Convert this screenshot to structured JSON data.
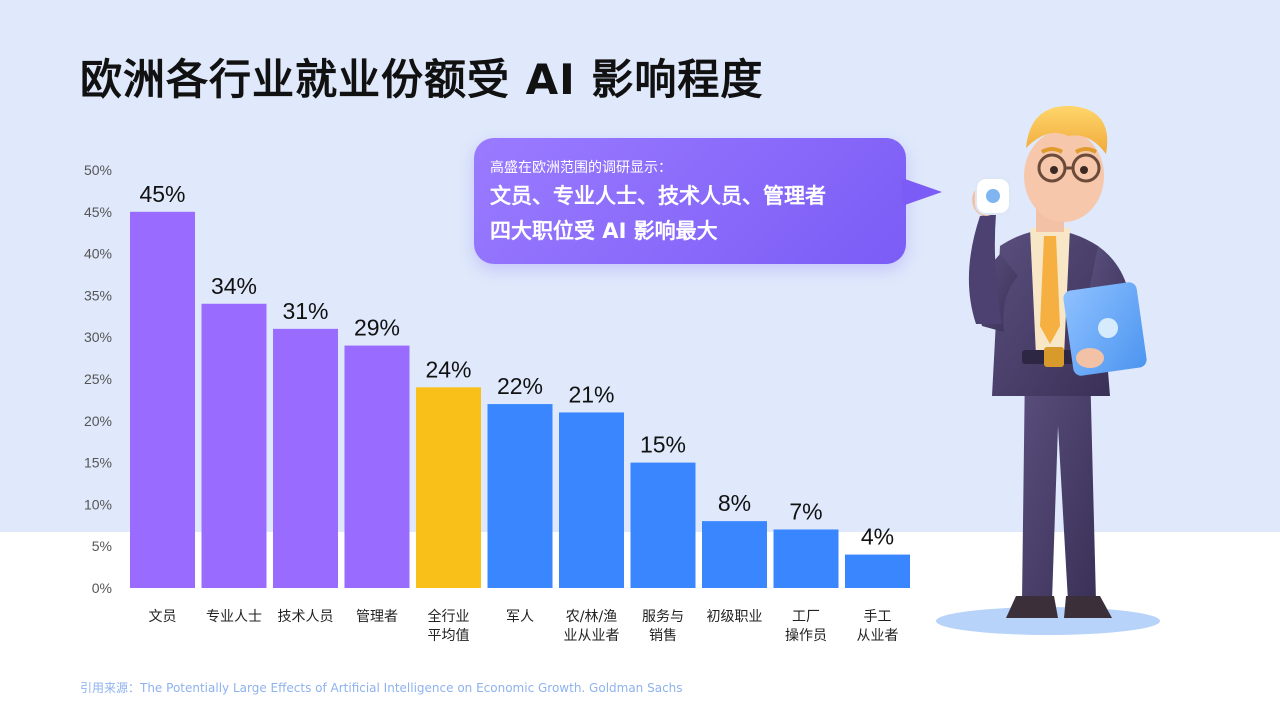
{
  "title": "欧洲各行业就业份额受 AI 影响程度",
  "callout": {
    "subtitle": "高盛在欧洲范围的调研显示：",
    "line1": "文员、专业人士、技术人员、管理者",
    "line2": "四大职位受 AI 影响最大"
  },
  "source": "引用来源：The Potentially Large Effects of Artificial Intelligence on Economic Growth. Goldman Sachs",
  "colors": {
    "purple": "#9a6bff",
    "yellow": "#f8c018",
    "blue": "#3a86ff"
  },
  "illustration": "businessman-drinking-coffee-holding-folder",
  "chart_data": {
    "type": "bar",
    "title": "欧洲各行业就业份额受 AI 影响程度",
    "xlabel": "",
    "ylabel": "",
    "ylim": [
      0,
      50
    ],
    "yticks": [
      "0%",
      "5%",
      "10%",
      "15%",
      "20%",
      "25%",
      "30%",
      "35%",
      "40%",
      "45%",
      "50%"
    ],
    "grid": false,
    "categories": [
      [
        "文员"
      ],
      [
        "专业人士"
      ],
      [
        "技术人员"
      ],
      [
        "管理者"
      ],
      [
        "全行业",
        "平均值"
      ],
      [
        "军人"
      ],
      [
        "农/林/渔",
        "业从业者"
      ],
      [
        "服务与",
        "销售"
      ],
      [
        "初级职业"
      ],
      [
        "工厂",
        "操作员"
      ],
      [
        "手工",
        "从业者"
      ]
    ],
    "values": [
      45,
      34,
      31,
      29,
      24,
      22,
      21,
      15,
      8,
      7,
      4
    ],
    "value_labels": [
      "45%",
      "34%",
      "31%",
      "29%",
      "24%",
      "22%",
      "21%",
      "15%",
      "8%",
      "7%",
      "4%"
    ],
    "bar_colors": [
      "purple",
      "purple",
      "purple",
      "purple",
      "yellow",
      "blue",
      "blue",
      "blue",
      "blue",
      "blue",
      "blue"
    ]
  }
}
